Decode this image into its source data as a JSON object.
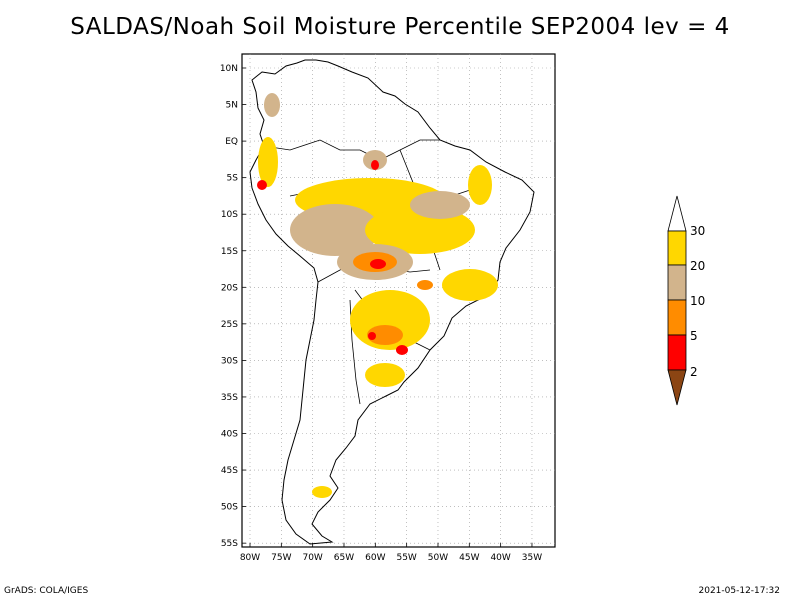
{
  "title": "SALDAS/Noah Soil Moisture Percentile SEP2004 lev = 4",
  "axes": {
    "lat_labels": [
      "10N",
      "5N",
      "EQ",
      "5S",
      "10S",
      "15S",
      "20S",
      "25S",
      "30S",
      "35S",
      "40S",
      "45S",
      "50S",
      "55S"
    ],
    "lon_labels": [
      "80W",
      "75W",
      "70W",
      "65W",
      "60W",
      "55W",
      "50W",
      "45W",
      "40W",
      "35W"
    ]
  },
  "legend": {
    "levels": [
      "2",
      "5",
      "10",
      "20",
      "30"
    ],
    "colors": {
      "below_2": "#8b4513",
      "2_5": "#ff0000",
      "5_10": "#ff8c00",
      "10_20": "#d2b48c",
      "20_30": "#ffd700",
      "above_30": "#ffffff"
    }
  },
  "footer": {
    "left": "GrADS: COLA/IGES",
    "right": "2021-05-12-17:32"
  }
}
